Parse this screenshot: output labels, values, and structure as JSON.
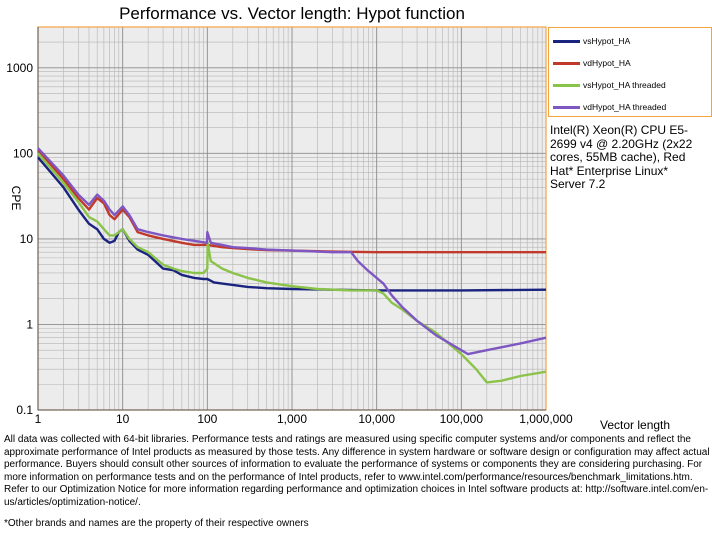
{
  "chart_data": {
    "type": "line",
    "title": "Performance vs. Vector length: Hypot function",
    "xlabel": "Vector length",
    "ylabel": "CPE",
    "xscale": "log",
    "yscale": "log",
    "xlim": [
      1,
      1000000
    ],
    "ylim": [
      0.1,
      3000
    ],
    "x_ticks": [
      1,
      10,
      100,
      1000,
      10000,
      100000,
      1000000
    ],
    "x_tick_labels": [
      "1",
      "10",
      "100",
      "1,000",
      "10,000",
      "100,000",
      "1,000,000"
    ],
    "y_ticks": [
      0.1,
      1,
      10,
      100,
      1000
    ],
    "y_tick_labels": [
      "0.1",
      "1",
      "10",
      "100",
      "1000"
    ],
    "grid": true,
    "legend_position": "right",
    "series": [
      {
        "name": "vsHypot_HA",
        "color": "#1a237e",
        "points": [
          [
            1,
            90
          ],
          [
            2,
            40
          ],
          [
            3,
            22
          ],
          [
            4,
            15
          ],
          [
            5,
            13
          ],
          [
            6,
            10
          ],
          [
            7,
            9
          ],
          [
            8,
            9.5
          ],
          [
            9,
            12
          ],
          [
            10,
            13
          ],
          [
            12,
            9.5
          ],
          [
            15,
            7.5
          ],
          [
            20,
            6.5
          ],
          [
            30,
            4.5
          ],
          [
            40,
            4.3
          ],
          [
            50,
            3.8
          ],
          [
            70,
            3.5
          ],
          [
            90,
            3.4
          ],
          [
            100,
            3.4
          ],
          [
            120,
            3.1
          ],
          [
            150,
            3.0
          ],
          [
            200,
            2.9
          ],
          [
            300,
            2.75
          ],
          [
            500,
            2.65
          ],
          [
            1000,
            2.6
          ],
          [
            3000,
            2.55
          ],
          [
            10000,
            2.5
          ],
          [
            16000,
            2.5
          ],
          [
            100000,
            2.5
          ],
          [
            1000000,
            2.55
          ]
        ]
      },
      {
        "name": "vdHypot_HA",
        "color": "#c0392b",
        "points": [
          [
            1,
            110
          ],
          [
            2,
            50
          ],
          [
            3,
            30
          ],
          [
            4,
            22
          ],
          [
            5,
            30
          ],
          [
            6,
            26
          ],
          [
            7,
            19
          ],
          [
            8,
            17
          ],
          [
            10,
            22
          ],
          [
            12,
            18
          ],
          [
            15,
            12
          ],
          [
            20,
            11
          ],
          [
            30,
            10
          ],
          [
            50,
            9
          ],
          [
            70,
            8.5
          ],
          [
            100,
            8.5
          ],
          [
            150,
            8
          ],
          [
            200,
            7.8
          ],
          [
            300,
            7.6
          ],
          [
            500,
            7.4
          ],
          [
            1000,
            7.3
          ],
          [
            3000,
            7.1
          ],
          [
            10000,
            7.0
          ],
          [
            100000,
            7.0
          ],
          [
            1000000,
            7.0
          ]
        ]
      },
      {
        "name": "vsHypot_HA threaded",
        "color": "#8bc34a",
        "points": [
          [
            1,
            100
          ],
          [
            2,
            45
          ],
          [
            3,
            27
          ],
          [
            4,
            18
          ],
          [
            5,
            16
          ],
          [
            6,
            13
          ],
          [
            7,
            11
          ],
          [
            8,
            11
          ],
          [
            10,
            13
          ],
          [
            12,
            10
          ],
          [
            15,
            8
          ],
          [
            20,
            7
          ],
          [
            30,
            5
          ],
          [
            40,
            4.5
          ],
          [
            50,
            4.2
          ],
          [
            70,
            4.0
          ],
          [
            90,
            4.0
          ],
          [
            100,
            4.5
          ],
          [
            101,
            9
          ],
          [
            110,
            5.5
          ],
          [
            150,
            4.5
          ],
          [
            200,
            4.0
          ],
          [
            300,
            3.5
          ],
          [
            500,
            3.1
          ],
          [
            1000,
            2.8
          ],
          [
            2000,
            2.6
          ],
          [
            5000,
            2.5
          ],
          [
            10000,
            2.5
          ],
          [
            12000,
            2.3
          ],
          [
            15000,
            1.8
          ],
          [
            20000,
            1.5
          ],
          [
            30000,
            1.1
          ],
          [
            50000,
            0.8
          ],
          [
            100000,
            0.45
          ],
          [
            150000,
            0.3
          ],
          [
            200000,
            0.21
          ],
          [
            300000,
            0.22
          ],
          [
            500000,
            0.25
          ],
          [
            1000000,
            0.28
          ]
        ]
      },
      {
        "name": "vdHypot_HA threaded",
        "color": "#7e57c2",
        "points": [
          [
            1,
            115
          ],
          [
            2,
            55
          ],
          [
            3,
            33
          ],
          [
            4,
            25
          ],
          [
            5,
            33
          ],
          [
            6,
            28
          ],
          [
            7,
            22
          ],
          [
            8,
            19
          ],
          [
            10,
            24
          ],
          [
            12,
            19
          ],
          [
            15,
            13
          ],
          [
            20,
            12
          ],
          [
            30,
            11
          ],
          [
            50,
            10
          ],
          [
            70,
            9.5
          ],
          [
            99,
            9
          ],
          [
            100,
            12
          ],
          [
            110,
            9
          ],
          [
            150,
            8.5
          ],
          [
            200,
            8
          ],
          [
            300,
            7.8
          ],
          [
            500,
            7.5
          ],
          [
            1000,
            7.3
          ],
          [
            3000,
            7.0
          ],
          [
            5000,
            7.0
          ],
          [
            6000,
            5.5
          ],
          [
            8000,
            4.2
          ],
          [
            10000,
            3.5
          ],
          [
            12000,
            3.0
          ],
          [
            15000,
            2.2
          ],
          [
            20000,
            1.6
          ],
          [
            30000,
            1.1
          ],
          [
            50000,
            0.75
          ],
          [
            100000,
            0.5
          ],
          [
            120000,
            0.45
          ],
          [
            200000,
            0.5
          ],
          [
            500000,
            0.6
          ],
          [
            1000000,
            0.7
          ]
        ]
      }
    ]
  },
  "cpu_note": "Intel(R) Xeon(R) CPU E5-2699 v4 @ 2.20GHz (2x22 cores, 55MB cache), Red Hat* Enterprise Linux* Server 7.2",
  "footnote": "All data was collected with 64-bit libraries. Performance tests and ratings are measured using specific computer systems and/or components and reflect the approximate performance of Intel products as measured by those tests. Any difference in system hardware or software design or configuration may affect actual performance. Buyers should consult other sources of information to evaluate the performance of systems or components they are considering purchasing. For more information on performance tests and on the performance of Intel products, refer to www.intel.com/performance/resources/benchmark_limitations.htm. Refer to our Optimization Notice for more information regarding performance and optimization choices in Intel software products at: http://software.intel.com/en-us/articles/optimization-notice/.",
  "trademark": "*Other brands and names are the property of their respective owners"
}
